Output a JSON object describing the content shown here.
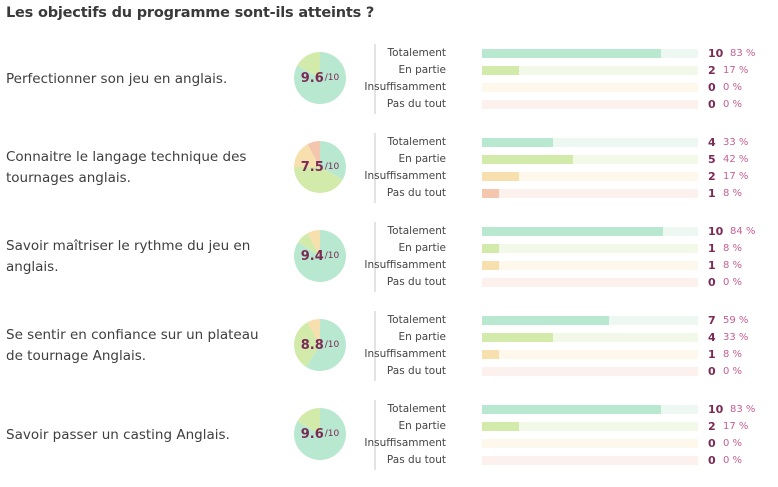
{
  "title": "Les objectifs du programme sont-ils atteints ?",
  "colors": {
    "totalement": "#b9e8d1",
    "en_partie": "#d3ebaa",
    "insuffisamment": "#f7dfae",
    "pas_du_tout": "#f3c6ad",
    "score_text": "#7a2b55",
    "percent_text": "#c55f93"
  },
  "chart_data": {
    "type": "bar",
    "levels": [
      "Totalement",
      "En partie",
      "Insuffisamment",
      "Pas du tout"
    ],
    "groups": [
      {
        "objective": "Perfectionner son jeu en anglais.",
        "score": "9.6",
        "score_max": "/10",
        "counts": [
          10,
          2,
          0,
          0
        ],
        "percent_labels": [
          "83 %",
          "17 %",
          "0 %",
          "0 %"
        ],
        "shares": [
          0.83,
          0.17,
          0,
          0
        ]
      },
      {
        "objective": "Connaitre le langage technique des tournages anglais.",
        "score": "7.5",
        "score_max": "/10",
        "counts": [
          4,
          5,
          2,
          1
        ],
        "percent_labels": [
          "33 %",
          "42 %",
          "17 %",
          "8 %"
        ],
        "shares": [
          0.33,
          0.42,
          0.17,
          0.08
        ]
      },
      {
        "objective": "Savoir maîtriser le rythme du jeu en anglais.",
        "score": "9.4",
        "score_max": "/10",
        "counts": [
          10,
          1,
          1,
          0
        ],
        "percent_labels": [
          "84 %",
          "8 %",
          "8 %",
          "0 %"
        ],
        "shares": [
          0.84,
          0.08,
          0.08,
          0
        ]
      },
      {
        "objective": "Se sentir en confiance sur un plateau de tournage Anglais.",
        "score": "8.8",
        "score_max": "/10",
        "counts": [
          7,
          4,
          1,
          0
        ],
        "percent_labels": [
          "59 %",
          "33 %",
          "8 %",
          "0 %"
        ],
        "shares": [
          0.59,
          0.33,
          0.08,
          0
        ]
      },
      {
        "objective": "Savoir passer un casting Anglais.",
        "score": "9.6",
        "score_max": "/10",
        "counts": [
          10,
          2,
          0,
          0
        ],
        "percent_labels": [
          "83 %",
          "17 %",
          "0 %",
          "0 %"
        ],
        "shares": [
          0.83,
          0.17,
          0,
          0
        ]
      }
    ]
  }
}
